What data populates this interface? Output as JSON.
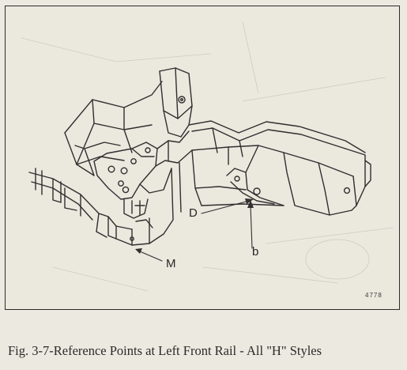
{
  "callouts": {
    "d": "D",
    "b": "b",
    "m": "M"
  },
  "figure_number": "4778",
  "caption": "Fig. 3-7-Reference Points at Left Front Rail - All \"H\" Styles"
}
